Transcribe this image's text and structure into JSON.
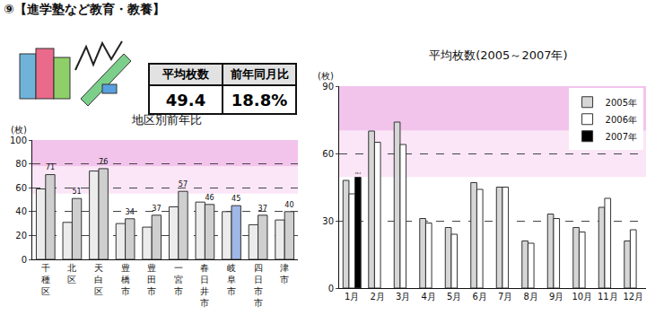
{
  "heading": "⑨【進学塾など教育・教養】",
  "summary_table": {
    "headers": [
      "平均枚数",
      "前年同月比"
    ],
    "values": [
      "49.4",
      "18.8%"
    ]
  },
  "chart_data": [
    {
      "type": "bar",
      "title": "地区別前年比",
      "y_label": "(枚)",
      "categories": [
        "千種区",
        "北区",
        "天白区",
        "豊橋市",
        "豊田市",
        "一宮市",
        "春日井市",
        "岐阜市",
        "四日市市",
        "津市"
      ],
      "series": [
        {
          "color": "#ececec",
          "values": [
            59,
            31,
            74,
            30,
            27,
            44,
            48,
            40,
            29,
            33
          ]
        },
        {
          "colors": [
            "#cfcfcf",
            "#cfcfcf",
            "#cfcfcf",
            "#cfcfcf",
            "#cfcfcf",
            "#cfcfcf",
            "#cfcfcf",
            "#9fb8e8",
            "#cfcfcf",
            "#cfcfcf"
          ],
          "values": [
            71,
            51,
            76,
            34,
            37,
            57,
            46,
            45,
            37,
            40
          ],
          "data_labels": true
        }
      ],
      "ylim": [
        0,
        100
      ],
      "yticks": [
        0,
        20,
        40,
        60,
        80,
        100
      ],
      "grid": true
    },
    {
      "type": "bar",
      "title": "平均枚数(2005～2007年)",
      "y_label": "(枚)",
      "categories": [
        "1月",
        "2月",
        "3月",
        "4月",
        "5月",
        "6月",
        "7月",
        "8月",
        "9月",
        "10月",
        "11月",
        "12月"
      ],
      "series": [
        {
          "name": "2005年",
          "color": "#d6d6d6",
          "values": [
            48,
            70,
            74,
            31,
            27,
            47,
            45,
            21,
            33,
            27,
            36,
            21
          ]
        },
        {
          "name": "2006年",
          "color": "#ffffff",
          "values": [
            42,
            65,
            64,
            29,
            24,
            44,
            45,
            20,
            31,
            25,
            40,
            26
          ]
        },
        {
          "name": "2007年",
          "color": "#000000",
          "values": [
            49.4,
            null,
            null,
            null,
            null,
            null,
            null,
            null,
            null,
            null,
            null,
            null
          ],
          "data_labels": true
        }
      ],
      "ylim": [
        0,
        90
      ],
      "yticks": [
        0,
        30,
        60,
        90
      ],
      "grid": true,
      "legend": "top right"
    }
  ]
}
